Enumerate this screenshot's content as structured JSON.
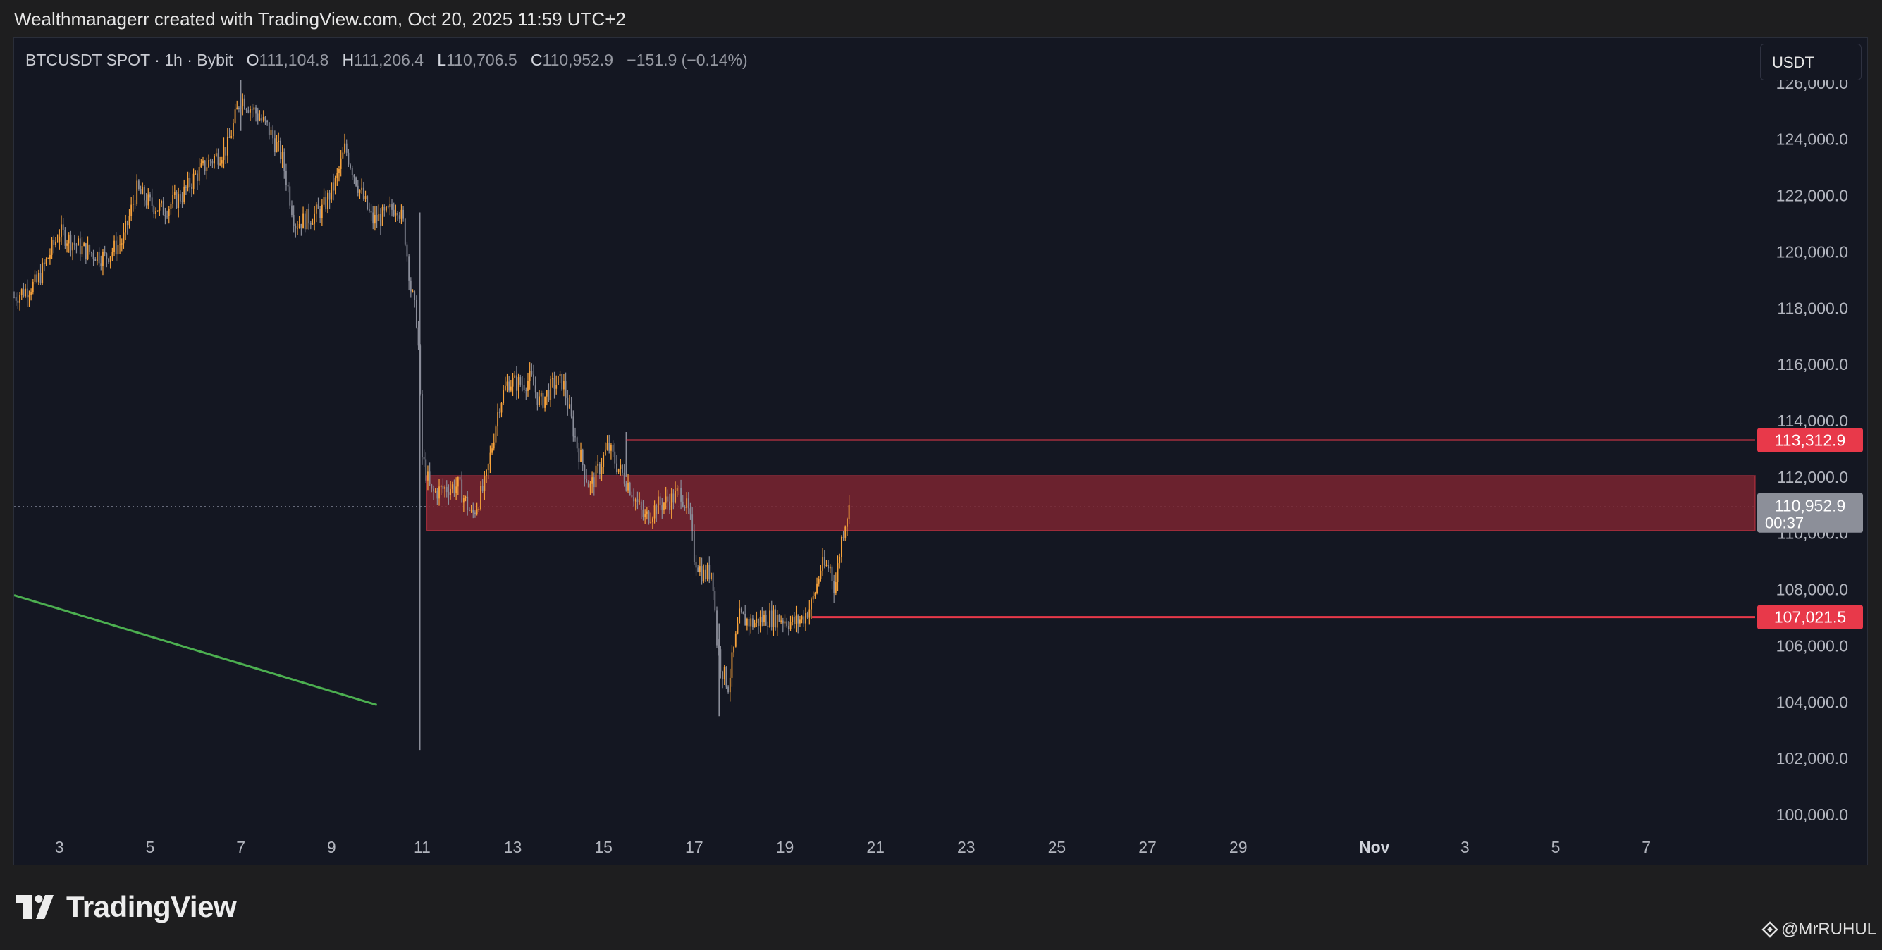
{
  "header": {
    "attribution": "Wealthmanagerr created with TradingView.com, Oct 20, 2025 11:59 UTC+2"
  },
  "legend": {
    "symbol": "BTCUSDT SPOT · 1h · Bybit",
    "o_label": "O",
    "o_value": "111,104.8",
    "h_label": "H",
    "h_value": "111,206.4",
    "l_label": "L",
    "l_value": "110,706.5",
    "c_label": "C",
    "c_value": "110,952.9",
    "change": "−151.9 (−0.14%)"
  },
  "currency_selector": "USDT",
  "brand": {
    "name": "TradingView"
  },
  "watermark": "@MrRUHUL",
  "colors": {
    "background": "#141722",
    "candle_up": "#f7a23b",
    "candle_down": "#8a8d99",
    "zone_fill": "#7a2430",
    "level_line": "#e8394a",
    "trendline": "#4caf50",
    "price_badge": "#8c8f99"
  },
  "chart_data": {
    "type": "candlestick",
    "symbol": "BTCUSDT",
    "interval": "1h",
    "exchange": "Bybit",
    "y_axis": {
      "ticks": [
        "100,000.0",
        "102,000.0",
        "104,000.0",
        "106,000.0",
        "108,000.0",
        "110,000.0",
        "112,000.0",
        "114,000.0",
        "116,000.0",
        "118,000.0",
        "120,000.0",
        "122,000.0",
        "124,000.0",
        "126,000.0"
      ],
      "tick_values": [
        100000,
        102000,
        104000,
        106000,
        108000,
        110000,
        112000,
        114000,
        116000,
        118000,
        120000,
        122000,
        124000,
        126000
      ],
      "range": [
        99700,
        127600
      ]
    },
    "x_axis": {
      "ticks": [
        "3",
        "5",
        "7",
        "9",
        "11",
        "13",
        "15",
        "17",
        "19",
        "21",
        "23",
        "25",
        "27",
        "29",
        "Nov",
        "3",
        "5",
        "7"
      ],
      "tick_days": [
        3,
        5,
        7,
        9,
        11,
        13,
        15,
        17,
        19,
        21,
        23,
        25,
        27,
        29,
        32,
        34,
        36,
        38
      ],
      "range_days": [
        2.0,
        40.4
      ]
    },
    "price_path": [
      [
        2.0,
        118400
      ],
      [
        2.5,
        118900
      ],
      [
        3.0,
        120700
      ],
      [
        3.5,
        120100
      ],
      [
        4.0,
        119800
      ],
      [
        4.4,
        120400
      ],
      [
        4.7,
        122200
      ],
      [
        5.0,
        121700
      ],
      [
        5.3,
        121500
      ],
      [
        5.7,
        122000
      ],
      [
        6.0,
        122700
      ],
      [
        6.3,
        123200
      ],
      [
        6.7,
        123700
      ],
      [
        7.0,
        125500
      ],
      [
        7.3,
        125000
      ],
      [
        7.6,
        124400
      ],
      [
        7.9,
        123400
      ],
      [
        8.2,
        121000
      ],
      [
        8.5,
        121200
      ],
      [
        8.8,
        121500
      ],
      [
        9.1,
        122500
      ],
      [
        9.3,
        123700
      ],
      [
        9.6,
        122300
      ],
      [
        9.9,
        121100
      ],
      [
        10.2,
        121300
      ],
      [
        10.45,
        121700
      ],
      [
        10.6,
        120900
      ],
      [
        10.75,
        118700
      ],
      [
        10.9,
        117400
      ],
      [
        11.0,
        112700
      ],
      [
        11.2,
        111400
      ],
      [
        11.5,
        111600
      ],
      [
        11.8,
        111700
      ],
      [
        12.1,
        110600
      ],
      [
        12.4,
        111800
      ],
      [
        12.7,
        114600
      ],
      [
        12.9,
        115400
      ],
      [
        13.2,
        115300
      ],
      [
        13.4,
        115500
      ],
      [
        13.6,
        114600
      ],
      [
        13.9,
        115300
      ],
      [
        14.1,
        115400
      ],
      [
        14.4,
        113200
      ],
      [
        14.7,
        111600
      ],
      [
        14.9,
        112300
      ],
      [
        15.1,
        113100
      ],
      [
        15.3,
        112400
      ],
      [
        15.6,
        111600
      ],
      [
        15.9,
        110500
      ],
      [
        16.2,
        111000
      ],
      [
        16.5,
        111200
      ],
      [
        16.7,
        111500
      ],
      [
        16.9,
        110600
      ],
      [
        17.0,
        109200
      ],
      [
        17.2,
        108500
      ],
      [
        17.4,
        108700
      ],
      [
        17.5,
        106200
      ],
      [
        17.6,
        105200
      ],
      [
        17.75,
        104600
      ],
      [
        17.85,
        105600
      ],
      [
        18.0,
        107000
      ],
      [
        18.3,
        106800
      ],
      [
        18.6,
        107000
      ],
      [
        18.9,
        107000
      ],
      [
        19.2,
        106800
      ],
      [
        19.4,
        107000
      ],
      [
        19.6,
        107500
      ],
      [
        19.8,
        108800
      ],
      [
        20.0,
        108800
      ],
      [
        20.1,
        108000
      ],
      [
        20.25,
        109800
      ],
      [
        20.35,
        110600
      ],
      [
        20.45,
        111000
      ]
    ],
    "wicks": [
      {
        "day": 10.95,
        "high": 121400,
        "low": 102300
      },
      {
        "day": 17.55,
        "high": 106800,
        "low": 103500
      },
      {
        "day": 7.0,
        "high": 126100,
        "low": 124300
      },
      {
        "day": 15.5,
        "high": 113600,
        "low": 112000
      }
    ],
    "last_price": 110952.9,
    "last_price_label": "110,952.9",
    "countdown": "00:37",
    "zone": {
      "from_day": 11.1,
      "to_day": 40.4,
      "low": 110100,
      "high": 112050
    },
    "levels": [
      {
        "start_day": 15.5,
        "price": 113312.9,
        "label": "113,312.9"
      },
      {
        "start_day": 19.6,
        "price": 107021.5,
        "label": "107,021.5"
      }
    ],
    "trendline": {
      "from": [
        2.0,
        107800
      ],
      "to": [
        10.0,
        103900
      ]
    }
  }
}
